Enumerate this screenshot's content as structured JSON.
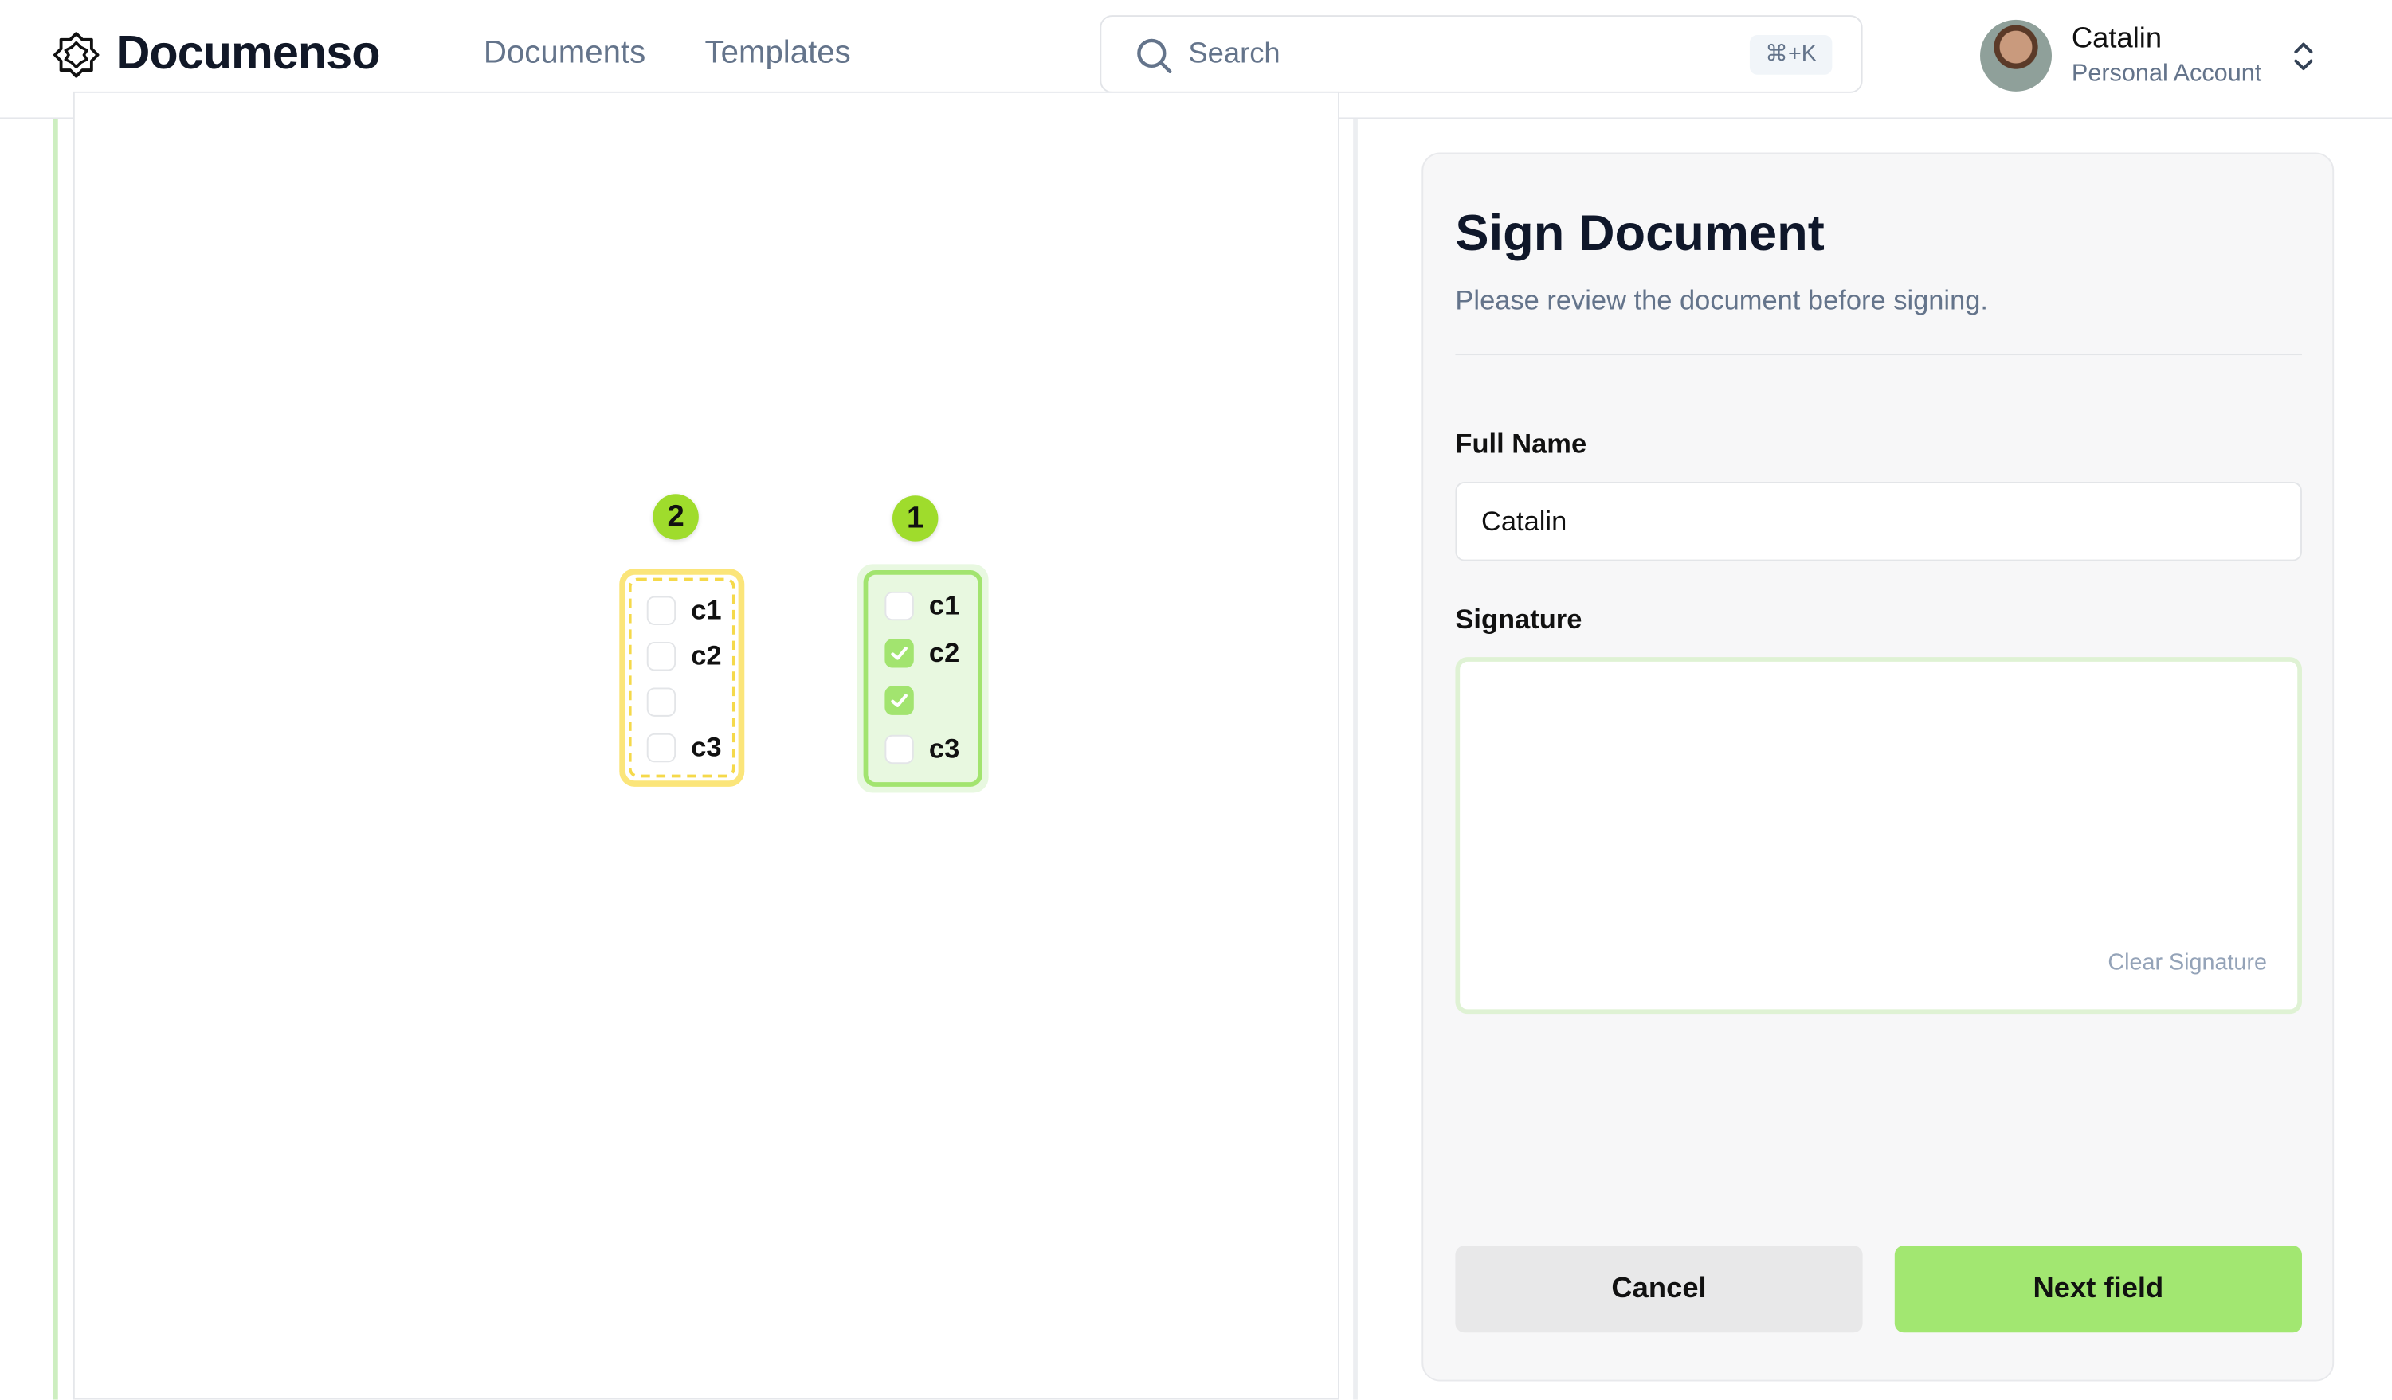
{
  "header": {
    "brand": "Documenso",
    "nav": [
      {
        "label": "Documents"
      },
      {
        "label": "Templates"
      }
    ],
    "search": {
      "placeholder": "Search",
      "shortcut": "⌘+K"
    },
    "user": {
      "name": "Catalin",
      "account": "Personal Account"
    }
  },
  "document": {
    "fields": [
      {
        "badge": "2",
        "state": "pending",
        "color": "#fbe57a",
        "options": [
          {
            "label": "c1",
            "checked": false
          },
          {
            "label": "c2",
            "checked": false
          },
          {
            "label": "",
            "checked": false
          },
          {
            "label": "c3",
            "checked": false
          }
        ]
      },
      {
        "badge": "1",
        "state": "completed",
        "color": "#a2e46f",
        "options": [
          {
            "label": "c1",
            "checked": false
          },
          {
            "label": "c2",
            "checked": true
          },
          {
            "label": "",
            "checked": true
          },
          {
            "label": "c3",
            "checked": false
          }
        ]
      }
    ]
  },
  "panel": {
    "title": "Sign Document",
    "subtitle": "Please review the document before signing.",
    "full_name_label": "Full Name",
    "full_name_value": "Catalin",
    "signature_label": "Signature",
    "clear_signature": "Clear Signature",
    "cancel": "Cancel",
    "next": "Next field",
    "accent": "#a2e771"
  }
}
